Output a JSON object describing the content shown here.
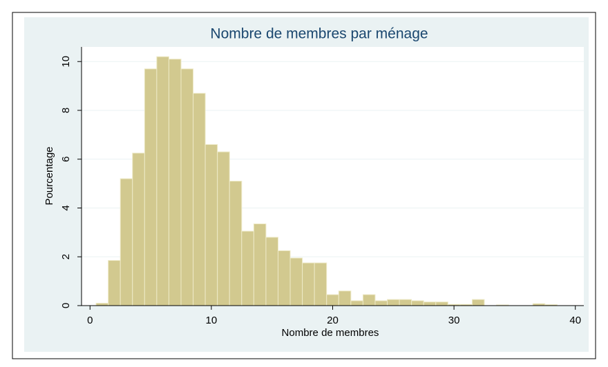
{
  "chart_data": {
    "type": "histogram",
    "title": "Nombre de membres par ménage",
    "xlabel": "Nombre de membres",
    "ylabel": "Pourcentage",
    "bins": [
      0.5,
      1.5,
      2.5,
      3.5,
      4.5,
      5.5,
      6.5,
      7.5,
      8.5,
      9.5,
      10.5,
      11.5,
      12.5,
      13.5,
      14.5,
      15.5,
      16.5,
      17.5,
      18.5,
      19.5,
      20.5,
      21.5,
      22.5,
      23.5,
      24.5,
      25.5,
      26.5,
      27.5,
      28.5,
      29.5,
      30.5,
      31.5,
      32.5,
      33.5,
      34.5,
      35.5,
      36.5,
      37.5,
      38.5
    ],
    "values": [
      0.1,
      1.85,
      5.2,
      6.25,
      9.7,
      10.2,
      10.1,
      9.7,
      8.7,
      6.6,
      6.3,
      5.1,
      3.05,
      3.35,
      2.8,
      2.25,
      1.95,
      1.75,
      1.75,
      0.45,
      0.6,
      0.2,
      0.45,
      0.2,
      0.25,
      0.25,
      0.2,
      0.15,
      0.15,
      0.05,
      0.05,
      0.25,
      0,
      0.03,
      0,
      0,
      0.08,
      0.04
    ],
    "color": "#d2c98f",
    "xlim": [
      -0.7,
      40.7
    ],
    "ylim": [
      0,
      10.6
    ],
    "xticks": [
      0,
      10,
      20,
      30,
      40
    ],
    "yticks": [
      0,
      2,
      4,
      6,
      8,
      10
    ],
    "grid": true
  }
}
